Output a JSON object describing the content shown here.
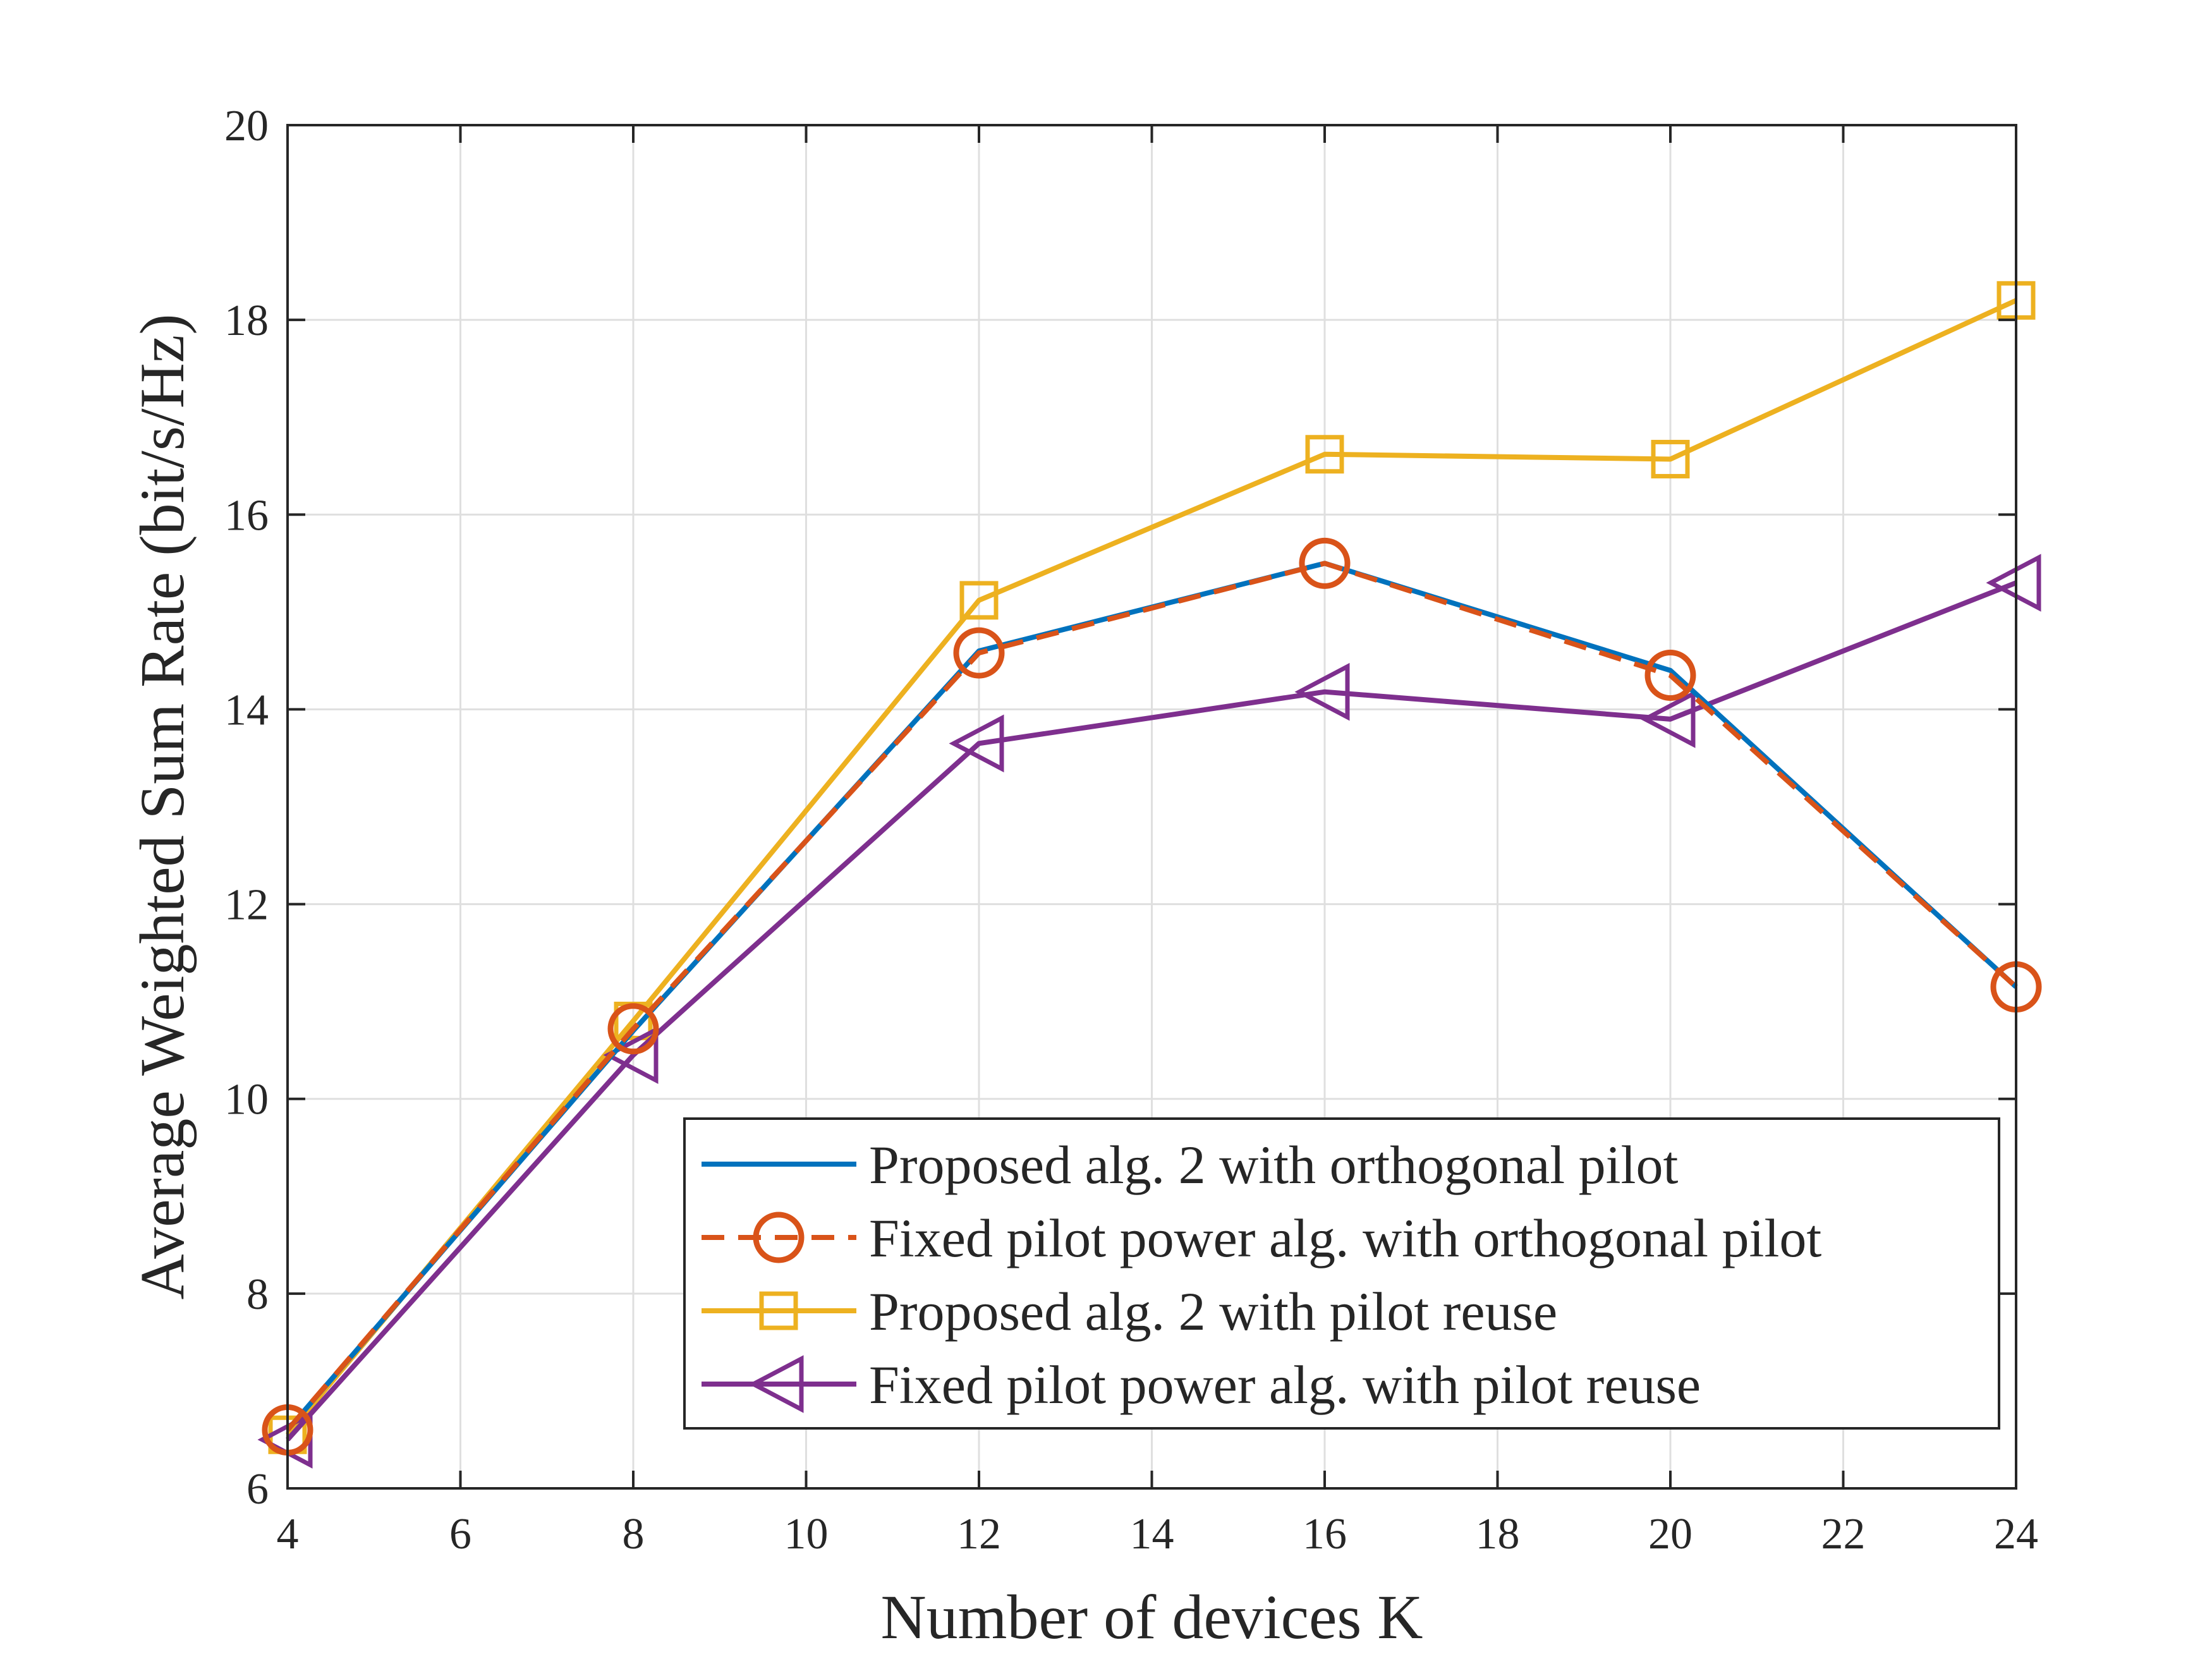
{
  "chart_data": {
    "type": "line",
    "title": "",
    "xlabel": "Number of devices K",
    "ylabel": "Average Weighted Sum Rate (bit/s/Hz)",
    "xlim": [
      4,
      24
    ],
    "ylim": [
      6,
      20
    ],
    "xticks": [
      4,
      6,
      8,
      10,
      12,
      14,
      16,
      18,
      20,
      22,
      24
    ],
    "yticks": [
      6,
      8,
      10,
      12,
      14,
      16,
      18,
      20
    ],
    "grid": true,
    "legend_position": "bottom-right",
    "x": [
      4,
      8,
      12,
      16,
      20,
      24
    ],
    "series": [
      {
        "name": "Proposed alg. 2 with orthogonal pilot",
        "color": "#0072BD",
        "line_style": "solid",
        "marker": "none",
        "values": [
          6.6,
          10.7,
          14.6,
          15.5,
          14.4,
          11.15
        ]
      },
      {
        "name": "Fixed pilot power alg. with orthogonal pilot",
        "color": "#D95319",
        "line_style": "dashed",
        "marker": "circle",
        "values": [
          6.6,
          10.72,
          14.58,
          15.5,
          14.35,
          11.15
        ]
      },
      {
        "name": "Proposed alg. 2 with pilot reuse",
        "color": "#EDB120",
        "line_style": "solid",
        "marker": "square",
        "values": [
          6.55,
          10.8,
          15.12,
          16.62,
          16.57,
          18.2
        ]
      },
      {
        "name": "Fixed pilot power alg. with pilot reuse",
        "color": "#7E2F8E",
        "line_style": "solid",
        "marker": "triangle-left",
        "values": [
          6.5,
          10.45,
          13.65,
          14.18,
          13.9,
          15.3
        ]
      }
    ]
  }
}
